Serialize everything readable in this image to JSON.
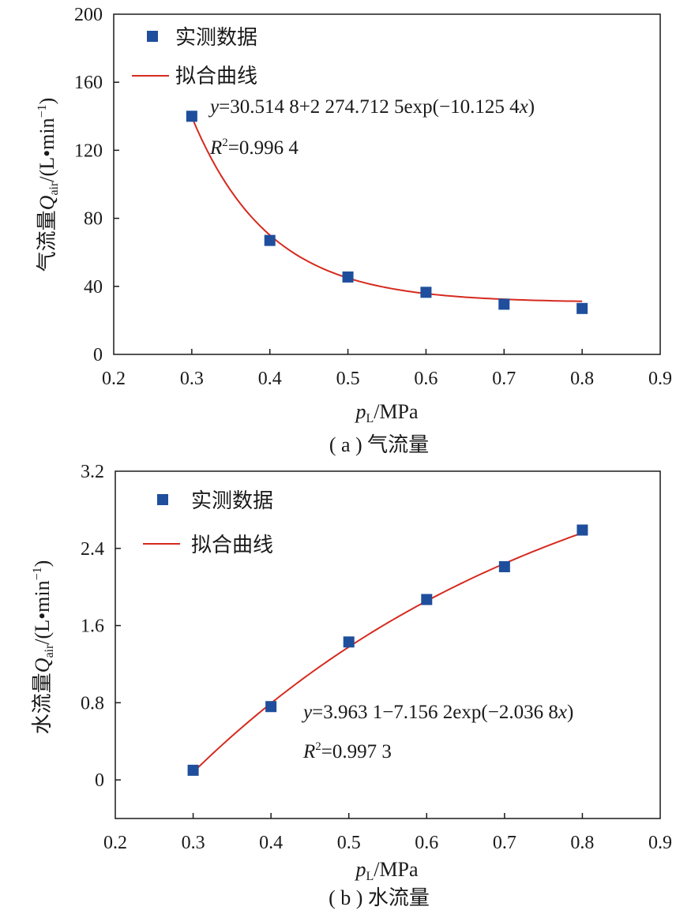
{
  "chart_data": [
    {
      "type": "scatter",
      "caption": "( a ) 气流量",
      "ylabel": {
        "main": "气流量",
        "q": "Q",
        "sub": "air",
        "unit_open": "/(L•min",
        "unit_sup": "−1",
        "unit_close": ")"
      },
      "xlabel": {
        "p": "p",
        "sub": "L",
        "unit": "/MPa"
      },
      "xlim": [
        0.2,
        0.9
      ],
      "ylim": [
        0,
        200
      ],
      "xticks": [
        "0.2",
        "0.3",
        "0.4",
        "0.5",
        "0.6",
        "0.7",
        "0.8",
        "0.9"
      ],
      "yticks": [
        "0",
        "40",
        "80",
        "120",
        "160",
        "200"
      ],
      "legend": {
        "placement": "top-left",
        "scatter": "实测数据",
        "line": "拟合曲线"
      },
      "series": [
        {
          "kind": "scatter",
          "color": "#1f4e9c",
          "x": [
            0.3,
            0.4,
            0.5,
            0.6,
            0.7,
            0.8
          ],
          "y": [
            140,
            67,
            45.5,
            36.5,
            29.5,
            27
          ]
        },
        {
          "kind": "fit",
          "color": "#d62a1e",
          "model": {
            "a": 30.5148,
            "b": 2274.7125,
            "k": -10.1254,
            "sign": 1
          },
          "x_range": [
            0.3,
            0.8
          ]
        }
      ],
      "annotation": {
        "eq_y": "y",
        "eq_body": "=30.514 8+2 274.712 5exp(−10.125 4",
        "eq_x": "x",
        "eq_end": ")",
        "r": "R",
        "r_sup": "2",
        "r_body": "=0.996 4"
      }
    },
    {
      "type": "scatter",
      "caption": "( b ) 水流量",
      "ylabel": {
        "main": "水流量",
        "q": "Q",
        "sub": "air",
        "unit_open": "/(L•min",
        "unit_sup": "−1",
        "unit_close": ")"
      },
      "xlabel": {
        "p": "p",
        "sub": "L",
        "unit": "/MPa"
      },
      "xlim": [
        0.2,
        0.9
      ],
      "ylim": [
        -0.4,
        3.2
      ],
      "xticks": [
        "0.2",
        "0.3",
        "0.4",
        "0.5",
        "0.6",
        "0.7",
        "0.8",
        "0.9"
      ],
      "yticks": [
        "0",
        "0.8",
        "1.6",
        "2.4",
        "3.2"
      ],
      "legend": {
        "placement": "top-left",
        "scatter": "实测数据",
        "line": "拟合曲线"
      },
      "series": [
        {
          "kind": "scatter",
          "color": "#1f4e9c",
          "x": [
            0.3,
            0.4,
            0.5,
            0.6,
            0.7,
            0.8
          ],
          "y": [
            0.1,
            0.76,
            1.43,
            1.87,
            2.21,
            2.59
          ]
        },
        {
          "kind": "fit",
          "color": "#d62a1e",
          "model": {
            "a": 3.9631,
            "b": 7.1562,
            "k": -2.0368,
            "sign": -1
          },
          "x_range": [
            0.3,
            0.8
          ]
        }
      ],
      "annotation": {
        "eq_y": "y",
        "eq_body": "=3.963 1−7.156 2exp(−2.036 8",
        "eq_x": "x",
        "eq_end": ")",
        "r": "R",
        "r_sup": "2",
        "r_body": "=0.997 3"
      }
    }
  ]
}
